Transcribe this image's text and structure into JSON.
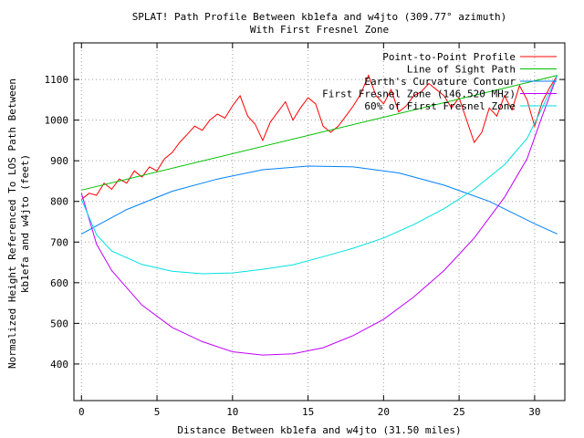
{
  "chart_data": {
    "type": "line",
    "title": "SPLAT! Path Profile Between kb1efa and w4jto (309.77° azimuth)",
    "subtitle": "With First Fresnel Zone",
    "xlabel": "Distance Between kb1efa and w4jto (31.50 miles)",
    "ylabel_line1": "Normalized Height Referenced To LOS Path Between",
    "ylabel_line2": "kb1efa and w4jto (feet)",
    "xlim": [
      -0.5,
      32
    ],
    "ylim": [
      310,
      1190
    ],
    "x_ticks": [
      0,
      5,
      10,
      15,
      20,
      25,
      30
    ],
    "y_ticks": [
      400,
      500,
      600,
      700,
      800,
      900,
      1000,
      1100
    ],
    "grid": true,
    "legend_position": "top-right",
    "series": [
      {
        "name": "Point-to-Point Profile",
        "color": "#ff0000",
        "points": [
          [
            0,
            805
          ],
          [
            0.5,
            820
          ],
          [
            1,
            815
          ],
          [
            1.5,
            845
          ],
          [
            2,
            830
          ],
          [
            2.5,
            855
          ],
          [
            3,
            845
          ],
          [
            3.5,
            875
          ],
          [
            4,
            860
          ],
          [
            4.5,
            885
          ],
          [
            5,
            875
          ],
          [
            5.5,
            905
          ],
          [
            6,
            920
          ],
          [
            6.5,
            945
          ],
          [
            7,
            965
          ],
          [
            7.5,
            985
          ],
          [
            8,
            975
          ],
          [
            8.5,
            1000
          ],
          [
            9,
            1015
          ],
          [
            9.5,
            1005
          ],
          [
            10,
            1035
          ],
          [
            10.5,
            1060
          ],
          [
            11,
            1010
          ],
          [
            11.5,
            990
          ],
          [
            12,
            950
          ],
          [
            12.5,
            995
          ],
          [
            13,
            1020
          ],
          [
            13.5,
            1045
          ],
          [
            14,
            1000
          ],
          [
            14.5,
            1030
          ],
          [
            15,
            1055
          ],
          [
            15.5,
            1040
          ],
          [
            16,
            985
          ],
          [
            16.5,
            970
          ],
          [
            17,
            985
          ],
          [
            17.5,
            1010
          ],
          [
            18,
            1035
          ],
          [
            18.5,
            1065
          ],
          [
            19,
            1110
          ],
          [
            19.5,
            1060
          ],
          [
            20,
            1040
          ],
          [
            20.5,
            1075
          ],
          [
            21,
            1020
          ],
          [
            21.5,
            1035
          ],
          [
            22,
            1060
          ],
          [
            22.5,
            1070
          ],
          [
            23,
            1090
          ],
          [
            23.5,
            1075
          ],
          [
            24,
            1060
          ],
          [
            24.5,
            1030
          ],
          [
            25,
            1055
          ],
          [
            25.5,
            1000
          ],
          [
            26,
            945
          ],
          [
            26.5,
            970
          ],
          [
            27,
            1030
          ],
          [
            27.5,
            1010
          ],
          [
            28,
            1060
          ],
          [
            28.5,
            1025
          ],
          [
            29,
            1085
          ],
          [
            29.5,
            1050
          ],
          [
            30,
            985
          ],
          [
            30.5,
            1045
          ],
          [
            31,
            1080
          ],
          [
            31.5,
            1110
          ]
        ]
      },
      {
        "name": "Line of Sight Path",
        "color": "#00c000",
        "points": [
          [
            0,
            828
          ],
          [
            31.5,
            1110
          ]
        ]
      },
      {
        "name": "Earth's Curvature Contour",
        "color": "#0080ff",
        "points": [
          [
            0,
            720
          ],
          [
            3,
            780
          ],
          [
            6,
            825
          ],
          [
            9,
            855
          ],
          [
            12,
            878
          ],
          [
            15,
            887
          ],
          [
            18,
            885
          ],
          [
            21,
            870
          ],
          [
            24,
            840
          ],
          [
            27,
            800
          ],
          [
            30,
            745
          ],
          [
            31.5,
            720
          ]
        ]
      },
      {
        "name": "First Fresnel Zone (146.520 MHz)",
        "color": "#c000ff",
        "points": [
          [
            0,
            820
          ],
          [
            1,
            695
          ],
          [
            2,
            630
          ],
          [
            4,
            545
          ],
          [
            6,
            490
          ],
          [
            8,
            455
          ],
          [
            10,
            430
          ],
          [
            12,
            422
          ],
          [
            14,
            425
          ],
          [
            16,
            440
          ],
          [
            18,
            470
          ],
          [
            20,
            510
          ],
          [
            22,
            565
          ],
          [
            24,
            630
          ],
          [
            26,
            710
          ],
          [
            28,
            810
          ],
          [
            29.5,
            905
          ],
          [
            30.5,
            1010
          ],
          [
            31.5,
            1110
          ]
        ]
      },
      {
        "name": "60% of First Fresnel Zone",
        "color": "#00e0e0",
        "points": [
          [
            0,
            805
          ],
          [
            1,
            718
          ],
          [
            2,
            678
          ],
          [
            4,
            645
          ],
          [
            6,
            628
          ],
          [
            8,
            622
          ],
          [
            10,
            624
          ],
          [
            12,
            633
          ],
          [
            14,
            644
          ],
          [
            16,
            664
          ],
          [
            18,
            685
          ],
          [
            20,
            710
          ],
          [
            22,
            743
          ],
          [
            24,
            782
          ],
          [
            26,
            830
          ],
          [
            28,
            890
          ],
          [
            29.5,
            955
          ],
          [
            30.5,
            1030
          ],
          [
            31.5,
            1110
          ]
        ]
      }
    ]
  }
}
